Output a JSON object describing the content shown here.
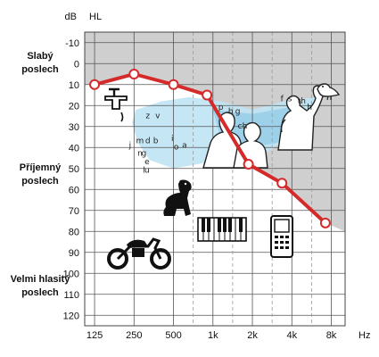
{
  "chart_data": {
    "type": "line",
    "title": "",
    "xlabel": "Hz",
    "ylabel": "dB HL",
    "y_unit_left": "dB",
    "y_unit_right": "HL",
    "x_ticks": [
      "125",
      "250",
      "500",
      "1k",
      "2k",
      "4k",
      "8k"
    ],
    "x_positions_octaves": [
      0,
      1,
      2,
      3,
      4,
      5,
      6
    ],
    "y_ticks": [
      -10,
      0,
      10,
      20,
      30,
      40,
      50,
      60,
      70,
      80,
      90,
      100,
      110,
      120
    ],
    "ylim": [
      -15,
      125
    ],
    "y_inverted": true,
    "grid": true,
    "zone_labels": [
      {
        "lines": [
          "Slabý",
          "poslech"
        ],
        "at_db": 3
      },
      {
        "lines": [
          "Příjemný",
          "poslech"
        ],
        "at_db": 53
      },
      {
        "lines": [
          "Velmi hlasitý",
          "poslech"
        ],
        "at_db": 105
      }
    ],
    "series": [
      {
        "color": "#d42a2a",
        "points": [
          {
            "x": "125",
            "octave": 0,
            "y": 10
          },
          {
            "x": "250",
            "octave": 1,
            "y": 5
          },
          {
            "x": "500",
            "octave": 2,
            "y": 10
          },
          {
            "x": "~900",
            "octave": 2.85,
            "y": 15
          },
          {
            "x": "~1.9k",
            "octave": 3.9,
            "y": 48
          },
          {
            "x": "~3.3k",
            "octave": 4.75,
            "y": 57
          },
          {
            "x": "~7.5k",
            "octave": 5.85,
            "y": 76
          }
        ]
      }
    ],
    "speech_letters": [
      {
        "t": "z",
        "oct": 1.35,
        "db": 26
      },
      {
        "t": "v",
        "oct": 1.6,
        "db": 26
      },
      {
        "t": "j",
        "oct": 0.9,
        "db": 40
      },
      {
        "t": "m",
        "oct": 1.15,
        "db": 38
      },
      {
        "t": "d",
        "oct": 1.35,
        "db": 38
      },
      {
        "t": "b",
        "oct": 1.55,
        "db": 38
      },
      {
        "t": "i",
        "oct": 1.97,
        "db": 37
      },
      {
        "t": "o",
        "oct": 2.07,
        "db": 41
      },
      {
        "t": "a",
        "oct": 2.28,
        "db": 40
      },
      {
        "t": "n",
        "oct": 1.15,
        "db": 44
      },
      {
        "t": "g",
        "oct": 1.25,
        "db": 44
      },
      {
        "t": "e",
        "oct": 1.33,
        "db": 48
      },
      {
        "t": "l",
        "oct": 1.25,
        "db": 52
      },
      {
        "t": "u",
        "oct": 1.33,
        "db": 52
      },
      {
        "t": "p",
        "oct": 3.2,
        "db": 22
      },
      {
        "t": "h",
        "oct": 3.45,
        "db": 24
      },
      {
        "t": "g",
        "oct": 3.63,
        "db": 24
      },
      {
        "t": "ch",
        "oct": 3.75,
        "db": 31
      },
      {
        "t": "f",
        "oct": 4.75,
        "db": 18
      },
      {
        "t": "s",
        "oct": 4.95,
        "db": 18
      },
      {
        "t": "th",
        "oct": 5.25,
        "db": 19
      },
      {
        "t": "h",
        "oct": 5.45,
        "db": 22
      }
    ],
    "colors": {
      "gray_zone": "#cfcfcf",
      "speech_banana": "#bfe3f4",
      "speech_banana_dark": "#8ccbe6",
      "line": "#d42a2a",
      "grid_major": "#555555",
      "grid_minor": "#999999"
    },
    "icons": [
      "faucet-icon",
      "woman-silhouette-icon",
      "child-silhouette-icon",
      "parent-child-silhouette-icon",
      "bird-icon",
      "dog-icon",
      "piano-icon",
      "phone-icon",
      "motorcycle-icon"
    ]
  }
}
